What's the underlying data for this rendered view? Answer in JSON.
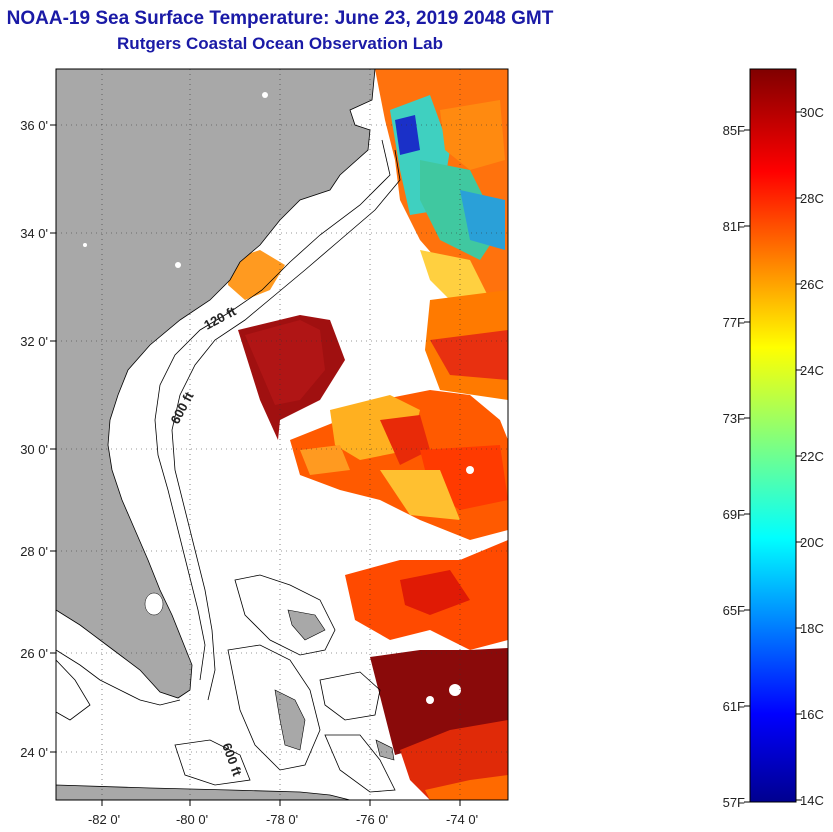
{
  "title": {
    "line1": "NOAA-19 Sea Surface Temperature:  June 23, 2019 2048 GMT",
    "line2": "Rutgers Coastal Ocean Observation Lab"
  },
  "map": {
    "lat_labels": [
      "36 0'",
      "34 0'",
      "32 0'",
      "30 0'",
      "28 0'",
      "26 0'",
      "24 0'"
    ],
    "lon_labels": [
      "-82 0'",
      "-80 0'",
      "-78 0'",
      "-76 0'",
      "-74 0'"
    ],
    "contour_labels": [
      "120 ft",
      "600 ft",
      "600 ft"
    ],
    "colors": {
      "land": "#a8a8a8",
      "ocean": "#ffffff",
      "contour": "#000000"
    }
  },
  "colorbar": {
    "celsius_labels": [
      "30C",
      "28C",
      "26C",
      "24C",
      "22C",
      "20C",
      "18C",
      "16C",
      "14C"
    ],
    "fahrenheit_labels": [
      "85F",
      "81F",
      "77F",
      "73F",
      "69F",
      "65F",
      "61F",
      "57F"
    ],
    "range_celsius": [
      14,
      31
    ]
  }
}
